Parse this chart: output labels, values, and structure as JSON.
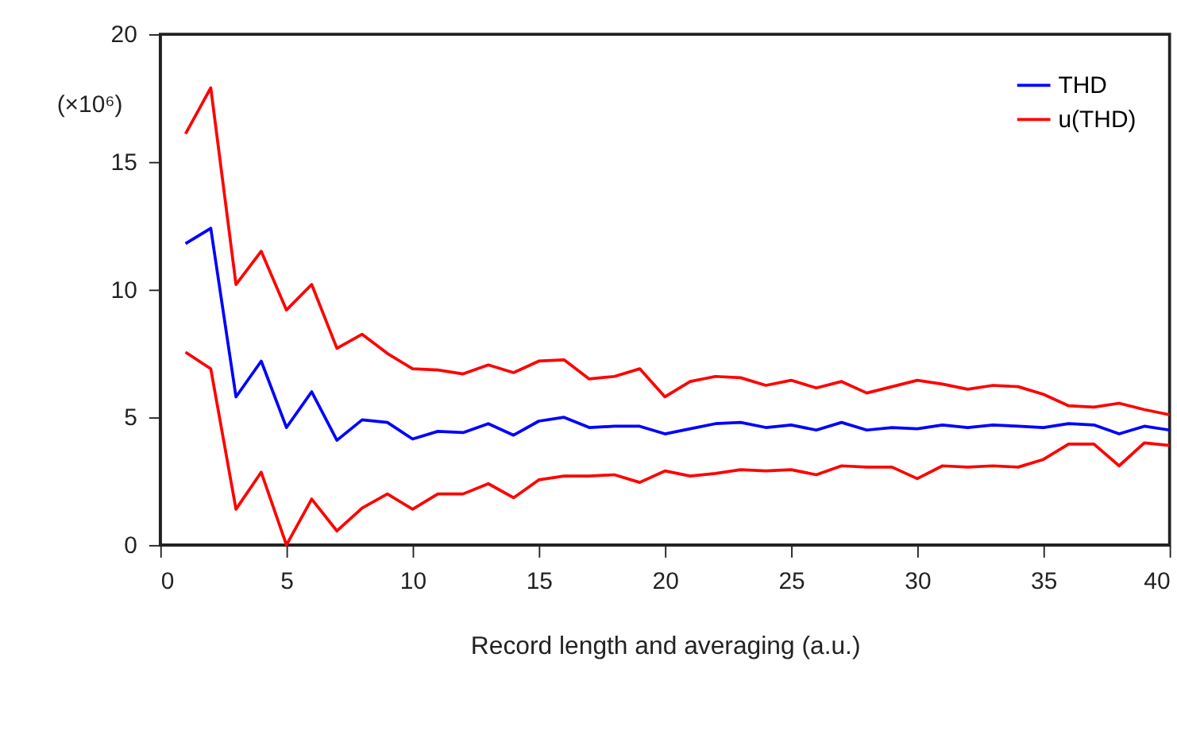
{
  "chart_data": {
    "type": "line",
    "xlabel": "Record length and averaging (a.u.)",
    "ylabel": "(×10⁶)",
    "x": [
      1,
      2,
      3,
      4,
      5,
      6,
      7,
      8,
      9,
      10,
      11,
      12,
      13,
      14,
      15,
      16,
      17,
      18,
      19,
      20,
      21,
      22,
      23,
      24,
      25,
      26,
      27,
      28,
      29,
      30,
      31,
      32,
      33,
      34,
      35,
      36,
      37,
      38,
      39,
      40
    ],
    "xlim": [
      0,
      40
    ],
    "xticks": [
      0,
      5,
      10,
      15,
      20,
      25,
      30,
      35,
      40
    ],
    "ylim": [
      0,
      20
    ],
    "yticks": [
      0,
      5,
      10,
      15,
      20
    ],
    "grid": false,
    "legend": "top right",
    "line_style": "solid",
    "marker": "none",
    "series": [
      {
        "name": "THD",
        "color": "#0000ff",
        "values": [
          11.8,
          12.4,
          5.8,
          7.2,
          4.6,
          6.0,
          4.1,
          4.9,
          4.8,
          4.15,
          4.45,
          4.4,
          4.75,
          4.3,
          4.85,
          5.0,
          4.6,
          4.65,
          4.65,
          4.35,
          4.55,
          4.75,
          4.8,
          4.6,
          4.7,
          4.5,
          4.8,
          4.5,
          4.6,
          4.55,
          4.7,
          4.6,
          4.7,
          4.65,
          4.6,
          4.75,
          4.7,
          4.35,
          4.65,
          4.5
        ]
      },
      {
        "name": "u(THD)",
        "color": "#ff0000",
        "values": [
          16.1,
          17.9,
          10.2,
          11.5,
          9.2,
          10.2,
          7.7,
          8.25,
          7.5,
          6.9,
          6.85,
          6.7,
          7.05,
          6.75,
          7.2,
          7.25,
          6.5,
          6.6,
          6.9,
          5.8,
          6.4,
          6.6,
          6.55,
          6.25,
          6.45,
          6.15,
          6.4,
          5.95,
          6.2,
          6.45,
          6.3,
          6.1,
          6.25,
          6.2,
          5.9,
          5.45,
          5.4,
          5.55,
          5.3,
          5.1
        ]
      },
      {
        "color": "#ff0000",
        "values": [
          7.55,
          6.9,
          1.4,
          2.85,
          0.0,
          1.8,
          0.55,
          1.45,
          2.0,
          1.4,
          2.0,
          2.0,
          2.4,
          1.85,
          2.55,
          2.7,
          2.7,
          2.75,
          2.45,
          2.9,
          2.7,
          2.8,
          2.95,
          2.9,
          2.95,
          2.75,
          3.1,
          3.05,
          3.05,
          2.6,
          3.1,
          3.05,
          3.1,
          3.05,
          3.35,
          3.95,
          3.95,
          3.1,
          4.0,
          3.9
        ]
      }
    ]
  }
}
